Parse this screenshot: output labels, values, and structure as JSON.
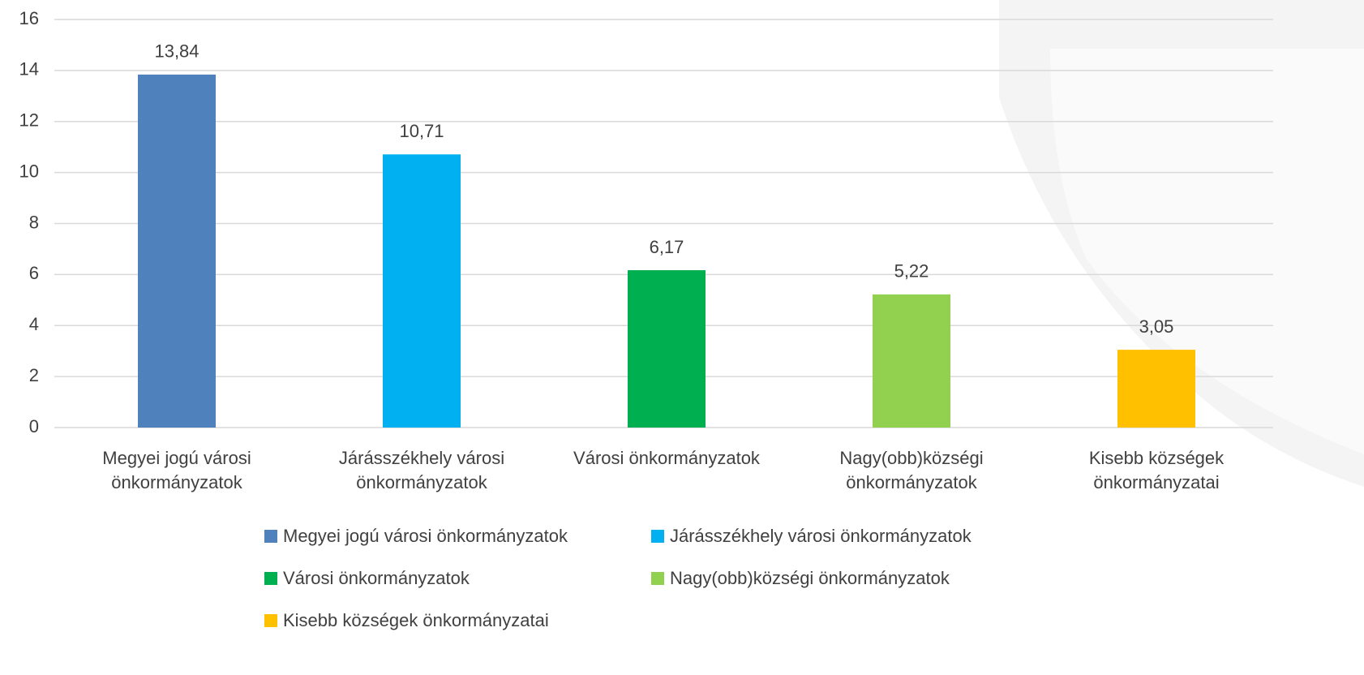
{
  "chart_data": {
    "type": "bar",
    "categories": [
      "Megyei jogú városi önkormányzatok",
      "Járásszékhely városi önkormányzatok",
      "Városi önkormányzatok",
      "Nagy(obb)községi önkormányzatok",
      "Kisebb községek önkormányzatai"
    ],
    "values": [
      13.84,
      10.71,
      6.17,
      5.22,
      3.05
    ],
    "value_labels": [
      "13,84",
      "10,71",
      "6,17",
      "5,22",
      "3,05"
    ],
    "colors": [
      "#4f81bd",
      "#00b0f0",
      "#00b050",
      "#92d050",
      "#ffc000"
    ],
    "ylim": [
      0,
      16
    ],
    "yticks": [
      0,
      2,
      4,
      6,
      8,
      10,
      12,
      14,
      16
    ],
    "grid": true
  }
}
